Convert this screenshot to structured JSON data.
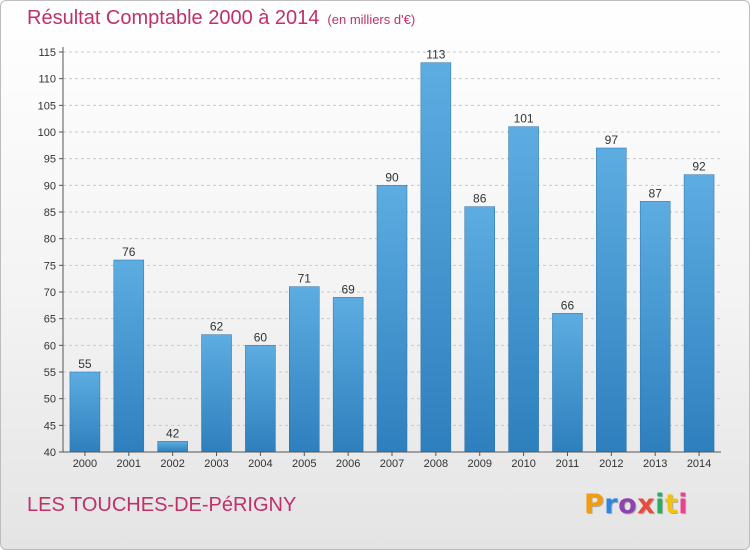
{
  "header": {
    "title": "Résultat Comptable 2000 à 2014",
    "subtitle": "(en milliers d'€)"
  },
  "footer": {
    "location": "LES TOUCHES-DE-PéRIGNY",
    "brand": "Proxiti",
    "brand_colors": [
      "#f39c12",
      "#2e86de",
      "#8e44ad",
      "#e74c3c",
      "#27ae60",
      "#f1c40f",
      "#e84393"
    ]
  },
  "chart_data": {
    "type": "bar",
    "title": "Résultat Comptable 2000 à 2014",
    "subtitle": "(en milliers d'€)",
    "xlabel": "",
    "ylabel": "",
    "categories": [
      "2000",
      "2001",
      "2002",
      "2003",
      "2004",
      "2005",
      "2006",
      "2007",
      "2008",
      "2009",
      "2010",
      "2011",
      "2012",
      "2013",
      "2014"
    ],
    "values": [
      55,
      76,
      42,
      62,
      60,
      71,
      69,
      90,
      113,
      86,
      101,
      66,
      97,
      87,
      92
    ],
    "ylim": [
      40,
      115
    ],
    "yticks": [
      40,
      45,
      50,
      55,
      60,
      65,
      70,
      75,
      80,
      85,
      90,
      95,
      100,
      105,
      110,
      115
    ],
    "grid": "horizontal dashed",
    "legend": "none",
    "bar_color_light": "#5dade2",
    "bar_color_dark": "#2e7fbd"
  }
}
